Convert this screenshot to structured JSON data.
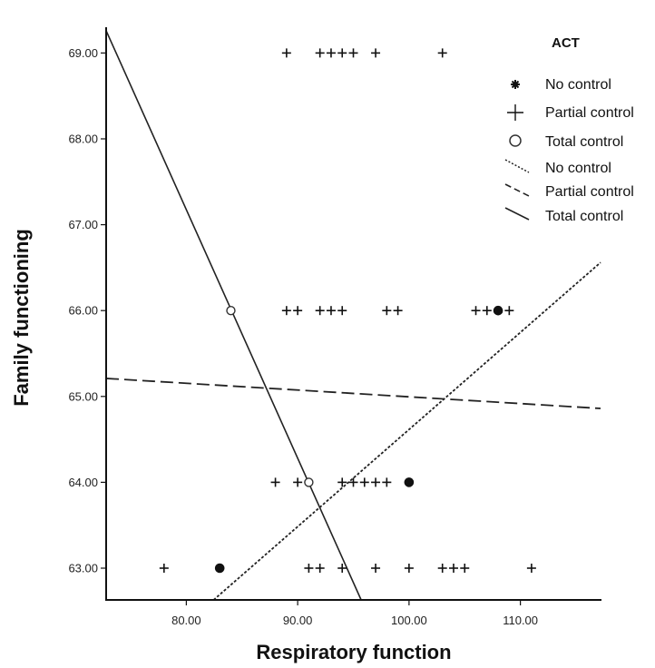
{
  "chart_data": {
    "type": "scatter",
    "xlabel": "Respiratory function",
    "ylabel": "Family functioning",
    "xlim": [
      72.8,
      117.2
    ],
    "ylim": [
      62.63,
      69.3
    ],
    "x_ticks": [
      "80.00",
      "90.00",
      "100.00",
      "110.00"
    ],
    "x_tick_values": [
      80,
      90,
      100,
      110
    ],
    "y_ticks": [
      "63.00",
      "64.00",
      "65.00",
      "66.00",
      "67.00",
      "68.00",
      "69.00"
    ],
    "y_tick_values": [
      63,
      64,
      65,
      66,
      67,
      68,
      69
    ],
    "grid": false,
    "legend": {
      "title": "ACT",
      "placement": "top-right",
      "items": [
        "No control",
        "Partial control",
        "Total control",
        "No control",
        "Partial control",
        "Total control"
      ]
    },
    "series": [
      {
        "name": "No control",
        "marker": "filled-dot",
        "points": [
          [
            83,
            63
          ],
          [
            100,
            64
          ],
          [
            108,
            66
          ]
        ]
      },
      {
        "name": "Partial control",
        "marker": "plus",
        "points": [
          [
            78,
            63
          ],
          [
            83,
            63
          ],
          [
            91,
            63
          ],
          [
            92,
            63
          ],
          [
            94,
            63
          ],
          [
            97,
            63
          ],
          [
            100,
            63
          ],
          [
            103,
            63
          ],
          [
            104,
            63
          ],
          [
            105,
            63
          ],
          [
            111,
            63
          ],
          [
            88,
            64
          ],
          [
            90,
            64
          ],
          [
            91,
            64
          ],
          [
            94,
            64
          ],
          [
            95,
            64
          ],
          [
            96,
            64
          ],
          [
            97,
            64
          ],
          [
            98,
            64
          ],
          [
            100,
            64
          ],
          [
            89,
            66
          ],
          [
            90,
            66
          ],
          [
            92,
            66
          ],
          [
            93,
            66
          ],
          [
            94,
            66
          ],
          [
            98,
            66
          ],
          [
            99,
            66
          ],
          [
            106,
            66
          ],
          [
            107,
            66
          ],
          [
            108,
            66
          ],
          [
            109,
            66
          ],
          [
            89,
            69
          ],
          [
            92,
            69
          ],
          [
            93,
            69
          ],
          [
            94,
            69
          ],
          [
            95,
            69
          ],
          [
            97,
            69
          ],
          [
            103,
            69
          ]
        ]
      },
      {
        "name": "Total control",
        "marker": "open-circle",
        "points": [
          [
            84,
            66
          ],
          [
            91,
            64
          ]
        ]
      }
    ],
    "fit_lines": [
      {
        "name": "No control",
        "style": "dotted",
        "x": [
          82.45,
          117.2
        ],
        "y": [
          62.63,
          66.56
        ]
      },
      {
        "name": "Partial control",
        "style": "dashed",
        "x": [
          72.8,
          117.2
        ],
        "y": [
          65.21,
          64.86
        ]
      },
      {
        "name": "Total control",
        "style": "solid",
        "x": [
          72.8,
          95.7
        ],
        "y": [
          69.26,
          62.63
        ]
      }
    ]
  }
}
